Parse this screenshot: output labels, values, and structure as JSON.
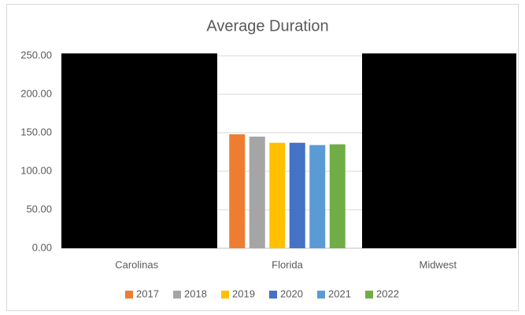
{
  "chart_data": {
    "type": "bar",
    "title": "Average Duration",
    "categories": [
      "Carolinas",
      "Florida",
      "Midwest"
    ],
    "series": [
      {
        "name": "2017",
        "color": "#ed7d31",
        "values": [
          null,
          148,
          null
        ]
      },
      {
        "name": "2018",
        "color": "#a5a5a5",
        "values": [
          null,
          145,
          null
        ]
      },
      {
        "name": "2019",
        "color": "#ffc000",
        "values": [
          null,
          137,
          null
        ]
      },
      {
        "name": "2020",
        "color": "#4472c4",
        "values": [
          null,
          137,
          null
        ]
      },
      {
        "name": "2021",
        "color": "#5b9bd5",
        "values": [
          null,
          134,
          null
        ]
      },
      {
        "name": "2022",
        "color": "#70ad47",
        "values": [
          null,
          135,
          null
        ]
      }
    ],
    "ylim": [
      0,
      250
    ],
    "yticks": [
      {
        "value": 0,
        "label": "0.00"
      },
      {
        "value": 50,
        "label": "50.00"
      },
      {
        "value": 100,
        "label": "100.00"
      },
      {
        "value": 150,
        "label": "150.00"
      },
      {
        "value": 200,
        "label": "200.00"
      },
      {
        "value": 250,
        "label": "250.00"
      }
    ],
    "grid": true,
    "legend": "bottom"
  }
}
